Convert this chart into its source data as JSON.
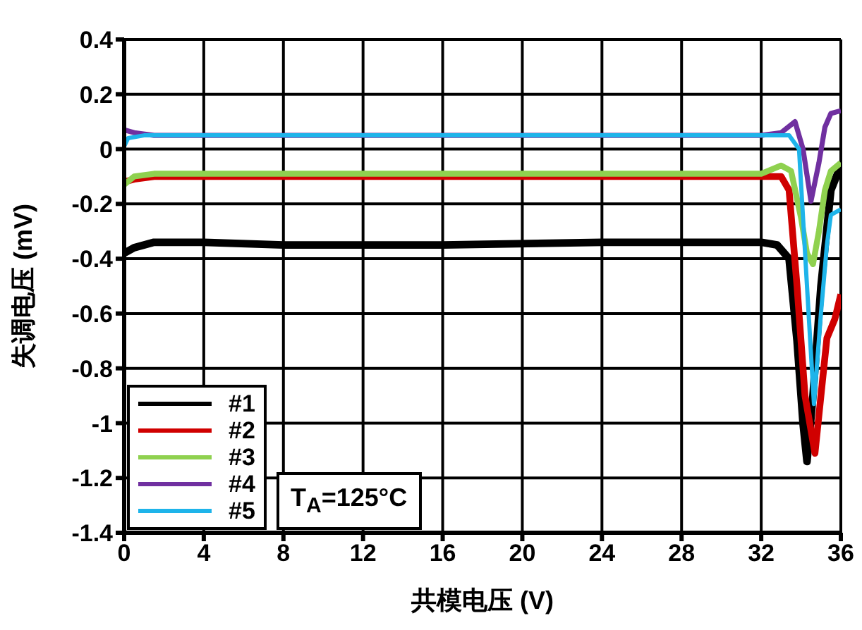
{
  "chart_data": {
    "type": "line",
    "xlabel": "共模电压 (V)",
    "ylabel": "失调电压 (mV)",
    "xlim": [
      0,
      36
    ],
    "xticks": [
      0,
      4,
      8,
      12,
      16,
      20,
      24,
      28,
      32,
      36
    ],
    "ylim": [
      -1.4,
      0.4
    ],
    "yticks": [
      -1.4,
      -1.2,
      -1,
      -0.8,
      -0.6,
      -0.4,
      -0.2,
      0,
      0.2,
      0.4
    ],
    "grid": true,
    "legend": "bottom left",
    "marker": "none",
    "line_style": "solid",
    "annotations": [
      "T$_{A}$=125°C"
    ],
    "series": [
      {
        "name": "#1",
        "color": "#000000",
        "x": [
          0,
          0.5,
          1.5,
          4,
          8,
          16,
          24,
          32,
          32.8,
          33.4,
          33.8,
          34.1,
          34.3,
          34.6,
          35,
          35.5,
          36
        ],
        "values": [
          -0.38,
          -0.36,
          -0.34,
          -0.34,
          -0.35,
          -0.35,
          -0.34,
          -0.34,
          -0.35,
          -0.4,
          -0.7,
          -1.0,
          -1.14,
          -0.9,
          -0.5,
          -0.15,
          -0.06
        ]
      },
      {
        "name": "#2",
        "color": "#d00000",
        "x": [
          0,
          0.5,
          1.5,
          4,
          8,
          16,
          24,
          32,
          33,
          33.4,
          33.8,
          34.2,
          34.7,
          35,
          35.3,
          35.7,
          36
        ],
        "values": [
          -0.12,
          -0.11,
          -0.1,
          -0.1,
          -0.1,
          -0.1,
          -0.1,
          -0.1,
          -0.1,
          -0.15,
          -0.5,
          -0.9,
          -1.11,
          -0.9,
          -0.69,
          -0.62,
          -0.53
        ]
      },
      {
        "name": "#3",
        "color": "#8fd14f",
        "x": [
          0,
          0.5,
          1.5,
          4,
          8,
          16,
          24,
          32,
          33,
          33.5,
          34,
          34.3,
          34.6,
          34.9,
          35.2,
          35.5,
          36
        ],
        "values": [
          -0.13,
          -0.1,
          -0.09,
          -0.09,
          -0.09,
          -0.09,
          -0.09,
          -0.09,
          -0.06,
          -0.08,
          -0.25,
          -0.38,
          -0.42,
          -0.3,
          -0.15,
          -0.08,
          -0.05
        ]
      },
      {
        "name": "#4",
        "color": "#7030a0",
        "x": [
          0,
          0.5,
          1.5,
          4,
          8,
          16,
          24,
          32,
          33,
          33.7,
          34.1,
          34.5,
          34.9,
          35.2,
          35.5,
          36
        ],
        "values": [
          0.07,
          0.06,
          0.05,
          0.05,
          0.05,
          0.05,
          0.05,
          0.05,
          0.06,
          0.1,
          0.0,
          -0.19,
          -0.05,
          0.08,
          0.13,
          0.14
        ]
      },
      {
        "name": "#5",
        "color": "#1eb4ea",
        "x": [
          0,
          0.2,
          1,
          4,
          8,
          16,
          24,
          32,
          33.4,
          33.9,
          34.3,
          34.65,
          35,
          35.3,
          35.5,
          36
        ],
        "values": [
          0.01,
          0.04,
          0.05,
          0.05,
          0.05,
          0.05,
          0.05,
          0.05,
          0.05,
          0.0,
          -0.5,
          -0.93,
          -0.6,
          -0.35,
          -0.24,
          -0.22
        ]
      }
    ]
  }
}
